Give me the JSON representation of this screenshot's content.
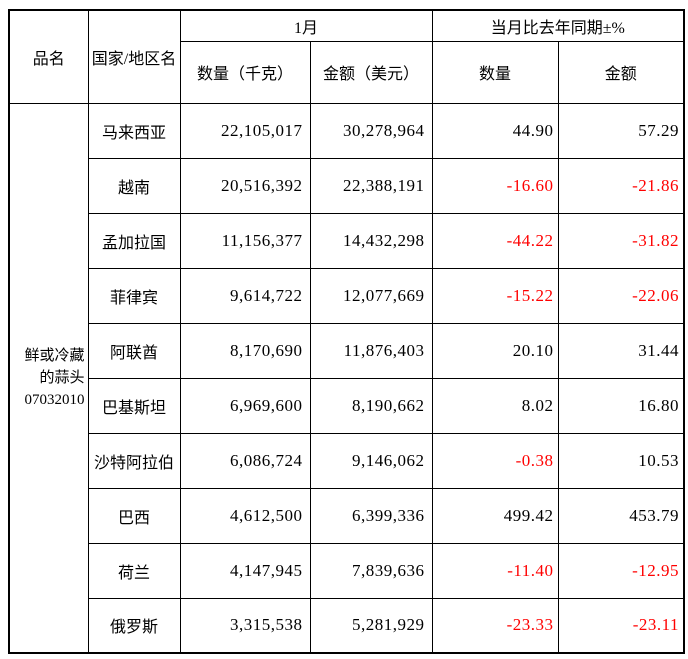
{
  "chart_data": {
    "type": "table",
    "header": {
      "product": "品名",
      "country": "国家/地区名",
      "month_group": "1月",
      "yoy_group": "当月比去年同期±%",
      "qty_kg": "数量（千克）",
      "amount_usd": "金额（美元）",
      "qty": "数量",
      "amount": "金额"
    },
    "product_lines": [
      "鲜或冷藏",
      "的蒜头",
      "07032010"
    ],
    "rows": [
      {
        "country": "马来西亚",
        "qty_kg": "22,105,017",
        "amount_usd": "30,278,964",
        "qty_yoy": "44.90",
        "amount_yoy": "57.29"
      },
      {
        "country": "越南",
        "qty_kg": "20,516,392",
        "amount_usd": "22,388,191",
        "qty_yoy": "-16.60",
        "amount_yoy": "-21.86"
      },
      {
        "country": "孟加拉国",
        "qty_kg": "11,156,377",
        "amount_usd": "14,432,298",
        "qty_yoy": "-44.22",
        "amount_yoy": "-31.82"
      },
      {
        "country": "菲律宾",
        "qty_kg": "9,614,722",
        "amount_usd": "12,077,669",
        "qty_yoy": "-15.22",
        "amount_yoy": "-22.06"
      },
      {
        "country": "阿联酋",
        "qty_kg": "8,170,690",
        "amount_usd": "11,876,403",
        "qty_yoy": "20.10",
        "amount_yoy": "31.44"
      },
      {
        "country": "巴基斯坦",
        "qty_kg": "6,969,600",
        "amount_usd": "8,190,662",
        "qty_yoy": "8.02",
        "amount_yoy": "16.80"
      },
      {
        "country": "沙特阿拉伯",
        "qty_kg": "6,086,724",
        "amount_usd": "9,146,062",
        "qty_yoy": "-0.38",
        "amount_yoy": "10.53"
      },
      {
        "country": "巴西",
        "qty_kg": "4,612,500",
        "amount_usd": "6,399,336",
        "qty_yoy": "499.42",
        "amount_yoy": "453.79"
      },
      {
        "country": "荷兰",
        "qty_kg": "4,147,945",
        "amount_usd": "7,839,636",
        "qty_yoy": "-11.40",
        "amount_yoy": "-12.95"
      },
      {
        "country": "俄罗斯",
        "qty_kg": "3,315,538",
        "amount_usd": "5,281,929",
        "qty_yoy": "-23.33",
        "amount_yoy": "-23.11"
      }
    ],
    "colors": {
      "text": "#000000",
      "negative": "#FF0000",
      "border": "#000000",
      "background": "#FFFFFF"
    }
  }
}
